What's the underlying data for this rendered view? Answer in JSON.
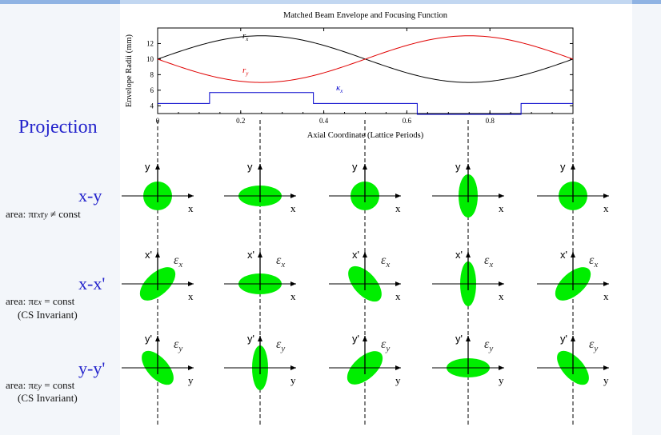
{
  "chart_data": {
    "type": "line",
    "title": "Matched Beam Envelope and Focusing Function",
    "xlabel": "Axial Coordinate (Lattice Periods)",
    "ylabel": "Envelope Radii (mm)",
    "xlim": [
      0,
      1
    ],
    "ylim": [
      3,
      14
    ],
    "xticks": [
      "0",
      "0.2",
      "0.4",
      "0.6",
      "0.8",
      "1"
    ],
    "yticks": [
      "4",
      "6",
      "8",
      "10",
      "12"
    ],
    "series": [
      {
        "name": "r_x",
        "label": "r",
        "sub": "x",
        "color": "#000000",
        "x": [
          0,
          0.125,
          0.25,
          0.375,
          0.5,
          0.625,
          0.75,
          0.875,
          1
        ],
        "y": [
          10,
          12.1,
          13,
          12.1,
          10,
          7.9,
          7,
          7.9,
          10
        ]
      },
      {
        "name": "r_y",
        "label": "r",
        "sub": "y",
        "color": "#e00000",
        "x": [
          0,
          0.125,
          0.25,
          0.375,
          0.5,
          0.625,
          0.75,
          0.875,
          1
        ],
        "y": [
          10,
          7.9,
          7,
          7.9,
          10,
          12.1,
          13,
          12.1,
          10
        ]
      },
      {
        "name": "kappa_x",
        "label": "κ",
        "sub": "x",
        "color": "#0000cc",
        "step": true,
        "x": [
          0,
          0.125,
          0.125,
          0.375,
          0.375,
          0.625,
          0.625,
          0.875,
          0.875,
          1
        ],
        "y": [
          4.3,
          4.3,
          5.7,
          5.7,
          4.3,
          4.3,
          2.9,
          2.9,
          4.3,
          4.3
        ]
      }
    ]
  },
  "projection_label": "Projection",
  "rows": [
    {
      "title": "x-y",
      "area": "area: πr",
      "area_tail": "r",
      "area_sub1": "x",
      "area_sub2": "y",
      "area_rel": " ≠ const",
      "note": "",
      "vaxis": "y",
      "haxis": "x",
      "emittance": ""
    },
    {
      "title": "x-x'",
      "area": "area: πε",
      "area_sub1": "x",
      "area_rel": " = const",
      "note": "(CS Invariant)",
      "vaxis": "x'",
      "haxis": "x",
      "emittance": "ε",
      "emittance_sub": "x"
    },
    {
      "title": "y-y'",
      "area": "area: πε",
      "area_sub1": "y",
      "area_rel": " = const",
      "note": "(CS Invariant)",
      "vaxis": "y'",
      "haxis": "y",
      "emittance": "ε",
      "emittance_sub": "y"
    }
  ],
  "colors": {
    "ellipse": "#00ee00",
    "title_blue": "#2424cc",
    "kappa": "#0000cc",
    "ry": "#e00000"
  }
}
